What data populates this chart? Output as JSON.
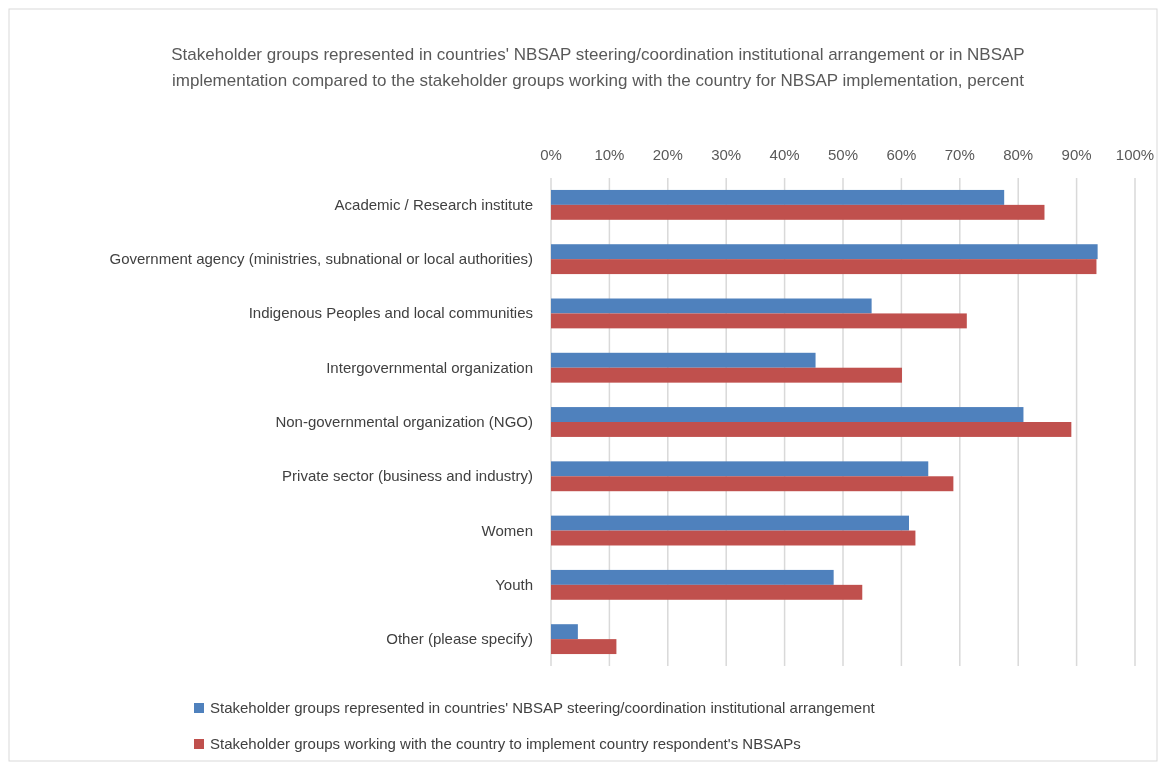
{
  "chart_data": {
    "type": "bar",
    "orientation": "horizontal",
    "title": "Stakeholder groups represented in countries' NBSAP steering/coordination institutional arrangement or in NBSAP implementation compared to the stakeholder groups working with the country for NBSAP implementation, percent",
    "categories": [
      "Academic /  Research institute",
      "Government agency (ministries, subnational or local authorities)",
      "Indigenous Peoples and  local communities",
      "Intergovernmental organization",
      "Non-governmental organization (NGO)",
      "Private sector (business and industry)",
      "Women",
      "Youth",
      "Other (please specify)"
    ],
    "series": [
      {
        "name": "Stakeholder groups represented in countries' NBSAP steering/coordination institutional arrangement",
        "color": "#4f81bd",
        "values": [
          77.6,
          93.6,
          54.9,
          45.3,
          80.9,
          64.6,
          61.3,
          48.4,
          4.6
        ]
      },
      {
        "name": "Stakeholder groups working with the country to implement country respondent's NBSAPs",
        "color": "#c0504d",
        "values": [
          84.5,
          93.4,
          71.2,
          60.1,
          89.1,
          68.9,
          62.4,
          53.3,
          11.2
        ]
      }
    ],
    "xlim": [
      0,
      100
    ],
    "xticks": [
      {
        "value": 0,
        "label": "0%"
      },
      {
        "value": 10,
        "label": "10%"
      },
      {
        "value": 20,
        "label": "20%"
      },
      {
        "value": 30,
        "label": "30%"
      },
      {
        "value": 40,
        "label": "40%"
      },
      {
        "value": 50,
        "label": "50%"
      },
      {
        "value": 60,
        "label": "60%"
      },
      {
        "value": 70,
        "label": "70%"
      },
      {
        "value": 80,
        "label": "80%"
      },
      {
        "value": 90,
        "label": "90%"
      },
      {
        "value": 100,
        "label": "100%"
      }
    ],
    "grid": "x",
    "legend": "bottom"
  }
}
